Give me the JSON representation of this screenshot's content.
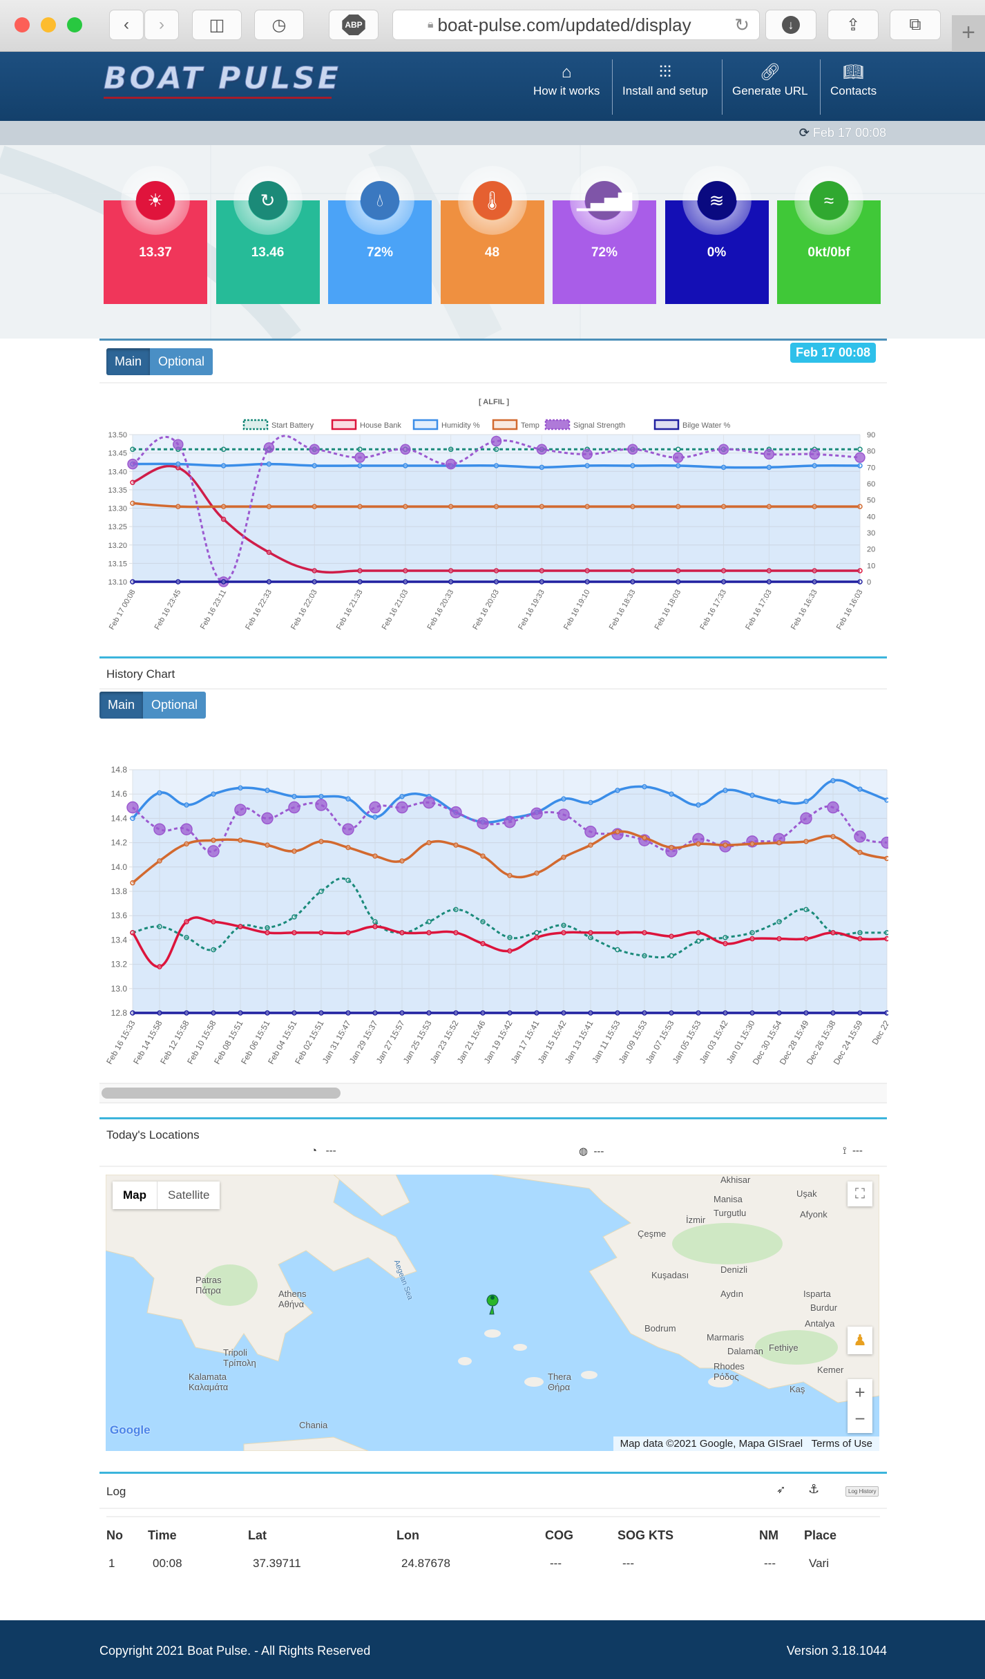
{
  "browser": {
    "url": "boat-pulse.com/updated/display",
    "adblock_label": "ABP"
  },
  "header": {
    "logo": "BOAT PULSE",
    "nav": [
      {
        "label": "How it works",
        "icon": "home-icon"
      },
      {
        "label": "Install and setup",
        "icon": "sliders-icon"
      },
      {
        "label": "Generate URL",
        "icon": "link-icon"
      },
      {
        "label": "Contacts",
        "icon": "contacts-book-icon"
      }
    ]
  },
  "subbar": {
    "timestamp": "Feb 17 00:08"
  },
  "tiles": [
    {
      "name": "house-bank",
      "value": "13.37",
      "color": "#f0365a",
      "icon": "battery-sun-icon"
    },
    {
      "name": "start-battery",
      "value": "13.46",
      "color": "#26bb98",
      "icon": "battery-refresh-icon"
    },
    {
      "name": "humidity",
      "value": "72%",
      "color": "#4ba3f7",
      "icon": "droplets-icon"
    },
    {
      "name": "temp",
      "value": "48",
      "color": "#ef9040",
      "icon": "thermometer-icon"
    },
    {
      "name": "signal",
      "value": "72%",
      "color": "#a95de8",
      "icon": "signal-bars-icon"
    },
    {
      "name": "bilge",
      "value": "0%",
      "color": "#140fb5",
      "icon": "water-waves-icon"
    },
    {
      "name": "wind",
      "value": "0kt/0bf",
      "color": "#40c838",
      "icon": "wind-icon"
    }
  ],
  "current": {
    "tab_main": "Main",
    "tab_optional": "Optional",
    "timestamp_badge": "Feb 17 00:08"
  },
  "history": {
    "title": "History Chart",
    "tab_main": "Main",
    "tab_optional": "Optional"
  },
  "chart_data": [
    {
      "type": "line",
      "title": "[ ALFIL ]",
      "grid": true,
      "legend": "top",
      "ylim": [
        13.1,
        13.5
      ],
      "y2lim": [
        0,
        90
      ],
      "yticks": [
        "13.50",
        "13.45",
        "13.40",
        "13.35",
        "13.30",
        "13.25",
        "13.20",
        "13.15",
        "13.10"
      ],
      "y2ticks": [
        "90",
        "80",
        "70",
        "60",
        "50",
        "40",
        "30",
        "20",
        "10",
        "0"
      ],
      "categories": [
        "Feb 17 00:08",
        "Feb 16 23:45",
        "Feb 16 23:11",
        "Feb 16 22:33",
        "Feb 16 22:03",
        "Feb 16 21:33",
        "Feb 16 21:03",
        "Feb 16 20:33",
        "Feb 16 20:03",
        "Feb 16 19:33",
        "Feb 16 19:10",
        "Feb 16 18:33",
        "Feb 16 18:03",
        "Feb 16 17:33",
        "Feb 16 17:03",
        "Feb 16 16:33",
        "Feb 16 16:03"
      ],
      "series": [
        {
          "name": "Start Battery",
          "axis": "left",
          "color": "#1a8a7a",
          "dashed": true,
          "values": [
            13.46,
            13.46,
            13.46,
            13.46,
            13.46,
            13.46,
            13.46,
            13.46,
            13.46,
            13.46,
            13.46,
            13.46,
            13.46,
            13.46,
            13.46,
            13.46,
            13.46
          ]
        },
        {
          "name": "House Bank",
          "axis": "left",
          "color": "#dc143c",
          "values": [
            13.37,
            13.41,
            13.27,
            13.18,
            13.13,
            13.13,
            13.13,
            13.13,
            13.13,
            13.13,
            13.13,
            13.13,
            13.13,
            13.13,
            13.13,
            13.13,
            13.13
          ]
        },
        {
          "name": "Humidity %",
          "axis": "right",
          "color": "#3a8de8",
          "fill": true,
          "values": [
            72,
            72,
            71,
            72,
            71,
            71,
            71,
            71,
            71,
            70,
            71,
            71,
            71,
            70,
            70,
            71,
            71
          ]
        },
        {
          "name": "Temp",
          "axis": "right",
          "color": "#d2692f",
          "values": [
            48,
            46,
            46,
            46,
            46,
            46,
            46,
            46,
            46,
            46,
            46,
            46,
            46,
            46,
            46,
            46,
            46
          ]
        },
        {
          "name": "Signal Strength",
          "axis": "right",
          "color": "#9b59d0",
          "dashed": true,
          "big": true,
          "values": [
            72,
            84,
            0,
            82,
            81,
            76,
            81,
            72,
            86,
            81,
            78,
            81,
            76,
            81,
            78,
            78,
            76
          ]
        },
        {
          "name": "Bilge Water %",
          "axis": "right",
          "color": "#2020a0",
          "values": [
            0,
            0,
            0,
            0,
            0,
            0,
            0,
            0,
            0,
            0,
            0,
            0,
            0,
            0,
            0,
            0,
            0
          ]
        }
      ]
    },
    {
      "type": "line",
      "grid": true,
      "ylim": [
        12.8,
        14.8
      ],
      "yticks": [
        "14.8",
        "14.6",
        "14.4",
        "14.2",
        "14.0",
        "13.8",
        "13.6",
        "13.4",
        "13.2",
        "13.0",
        "12.8"
      ],
      "categories": [
        "Feb 16 15:33",
        "Feb 14 15:58",
        "Feb 12 15:58",
        "Feb 10 15:58",
        "Feb 08 15:51",
        "Feb 06 15:51",
        "Feb 04 15:51",
        "Feb 02 15:51",
        "Jan 31 15:47",
        "Jan 29 15:37",
        "Jan 27 15:57",
        "Jan 25 15:53",
        "Jan 23 15:52",
        "Jan 21 15:46",
        "Jan 19 15:42",
        "Jan 17 15:41",
        "Jan 15 15:42",
        "Jan 13 15:41",
        "Jan 11 15:53",
        "Jan 09 15:53",
        "Jan 07 15:53",
        "Jan 05 15:53",
        "Jan 03 15:42",
        "Jan 01 15:30",
        "Dec 30 15:54",
        "Dec 28 15:49",
        "Dec 26 15:38",
        "Dec 24 15:59",
        "Dec 22"
      ],
      "series": [
        {
          "axis": "left",
          "color": "#3a8de8",
          "fill": true,
          "values": [
            14.4,
            14.61,
            14.51,
            14.6,
            14.65,
            14.63,
            14.58,
            14.58,
            14.56,
            14.41,
            14.58,
            14.58,
            14.45,
            14.37,
            14.4,
            14.45,
            14.56,
            14.53,
            14.63,
            14.66,
            14.6,
            14.51,
            14.63,
            14.59,
            14.54,
            14.54,
            14.71,
            14.64,
            14.55
          ]
        },
        {
          "axis": "left",
          "color": "#9b59d0",
          "dashed": true,
          "big": true,
          "values": [
            14.49,
            14.31,
            14.31,
            14.13,
            14.47,
            14.4,
            14.49,
            14.51,
            14.31,
            14.49,
            14.49,
            14.53,
            14.45,
            14.36,
            14.37,
            14.44,
            14.43,
            14.29,
            14.27,
            14.22,
            14.13,
            14.23,
            14.17,
            14.21,
            14.23,
            14.4,
            14.49,
            14.25,
            14.2
          ]
        },
        {
          "axis": "left",
          "color": "#d2692f",
          "values": [
            13.87,
            14.05,
            14.19,
            14.22,
            14.22,
            14.18,
            14.13,
            14.21,
            14.16,
            14.09,
            14.05,
            14.2,
            14.18,
            14.09,
            13.93,
            13.95,
            14.08,
            14.18,
            14.29,
            14.24,
            14.16,
            14.19,
            14.18,
            14.19,
            14.2,
            14.21,
            14.25,
            14.12,
            14.07
          ]
        },
        {
          "axis": "left",
          "color": "#1a8a7a",
          "dashed": true,
          "values": [
            13.46,
            13.51,
            13.42,
            13.32,
            13.51,
            13.5,
            13.59,
            13.8,
            13.89,
            13.55,
            13.46,
            13.55,
            13.65,
            13.55,
            13.42,
            13.46,
            13.52,
            13.42,
            13.32,
            13.27,
            13.27,
            13.39,
            13.42,
            13.46,
            13.55,
            13.65,
            13.46,
            13.46,
            13.46
          ]
        },
        {
          "axis": "left",
          "color": "#dc143c",
          "values": [
            13.46,
            13.18,
            13.55,
            13.55,
            13.51,
            13.46,
            13.46,
            13.46,
            13.46,
            13.51,
            13.46,
            13.46,
            13.46,
            13.37,
            13.31,
            13.42,
            13.46,
            13.46,
            13.46,
            13.46,
            13.43,
            13.46,
            13.37,
            13.41,
            13.41,
            13.41,
            13.46,
            13.41,
            13.41
          ]
        },
        {
          "axis": "left",
          "color": "#2020a0",
          "values": [
            12.8,
            12.8,
            12.8,
            12.8,
            12.8,
            12.8,
            12.8,
            12.8,
            12.8,
            12.8,
            12.8,
            12.8,
            12.8,
            12.8,
            12.8,
            12.8,
            12.8,
            12.8,
            12.8,
            12.8,
            12.8,
            12.8,
            12.8,
            12.8,
            12.8,
            12.8,
            12.8,
            12.8,
            12.8
          ]
        }
      ]
    }
  ],
  "locations": {
    "title": "Today's Locations",
    "speed": "---",
    "gauge": "---",
    "route": "---"
  },
  "map": {
    "tab_map": "Map",
    "tab_satellite": "Satellite",
    "attribution": "Map data ©2021 Google, Mapa GISrael",
    "terms": "Terms of Use",
    "google": "Google",
    "zoom_in": "+",
    "zoom_out": "−",
    "labels": [
      "Akhisar",
      "Manisa",
      "Uşak",
      "İzmir",
      "Turgutlu",
      "Çeşme",
      "Afyonk",
      "Patras\nΠάτρα",
      "Athens\nΑθήνα",
      "Aegean Sea",
      "Kuşadası",
      "Denizli",
      "Aydın",
      "Isparta",
      "Burdur",
      "Tripoli\nΤρίπολη",
      "Kalamata\nΚαλαμάτα",
      "Bodrum",
      "Marmaris",
      "Dalaman",
      "Fethiye",
      "Rhodes\nΡόδος",
      "Kemer",
      "Kaş",
      "Thera\nΘήρα",
      "Chania",
      "Antalya"
    ]
  },
  "log": {
    "title": "Log",
    "history_button": "Log History",
    "columns": [
      "No",
      "Time",
      "Lat",
      "Lon",
      "COG",
      "SOG KTS",
      "NM",
      "Place"
    ],
    "rows": [
      [
        "1",
        "00:08",
        "37.39711",
        "24.87678",
        "---",
        "---",
        "---",
        "Vari"
      ]
    ]
  },
  "footer": {
    "copyright": "Copyright  2021 Boat Pulse. - All Rights Reserved",
    "version": "Version 3.18.1044"
  }
}
